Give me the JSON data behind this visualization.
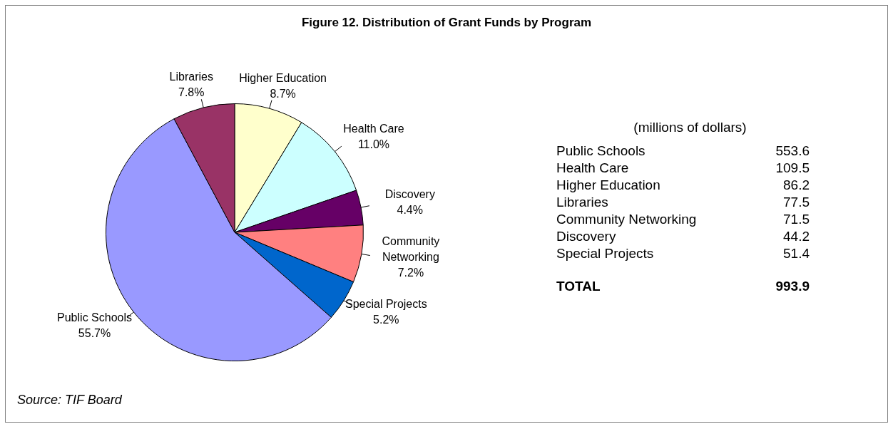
{
  "chart_data": [
    {
      "type": "pie",
      "title": "Figure 12.  Distribution of Grant Funds by Program",
      "categories": [
        "Higher Education",
        "Health Care",
        "Discovery",
        "Community Networking",
        "Special Projects",
        "Public Schools",
        "Libraries"
      ],
      "values": [
        8.7,
        11.0,
        4.4,
        7.2,
        5.2,
        55.7,
        7.8
      ],
      "value_labels": [
        "8.7%",
        "11.0%",
        "4.4%",
        "7.2%",
        "5.2%",
        "55.7%",
        "7.8%"
      ],
      "colors": [
        "#ffffcc",
        "#ccffff",
        "#660066",
        "#ff8080",
        "#0066cc",
        "#9999ff",
        "#993366"
      ],
      "annotations": [
        "Source: TIF Board"
      ]
    },
    {
      "type": "other",
      "title": "(millions of dollars)",
      "categories": [
        "Public Schools",
        "Health Care",
        "Higher Education",
        "Libraries",
        "Community Networking",
        "Discovery",
        "Special Projects"
      ],
      "values": [
        553.6,
        109.5,
        86.2,
        77.5,
        71.5,
        44.2,
        51.4
      ],
      "data_labels": true,
      "totals": [
        "993.9"
      ],
      "annotations": [
        "TOTAL"
      ]
    }
  ]
}
